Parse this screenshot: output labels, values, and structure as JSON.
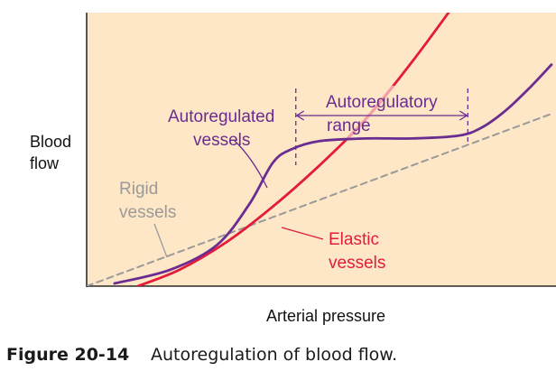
{
  "chart_data": {
    "type": "line",
    "title": "",
    "xlabel": "Arterial pressure",
    "ylabel_lines": [
      "Blood",
      "flow"
    ],
    "xlim": [
      0,
      100
    ],
    "ylim": [
      0,
      100
    ],
    "grid": false,
    "series": [
      {
        "name": "Rigid vessels",
        "label_lines": [
          "Rigid",
          "vessels"
        ],
        "color": "#9a9a9a",
        "style": "dashed",
        "x": [
          0,
          100
        ],
        "y": [
          0,
          63
        ]
      },
      {
        "name": "Autoregulated vessels",
        "label_lines": [
          "Autoregulated",
          "vessels"
        ],
        "color": "#6a2c91",
        "style": "solid",
        "x": [
          6,
          18,
          28,
          35,
          40,
          44,
          50,
          60,
          70,
          80,
          85,
          90,
          95,
          100
        ],
        "y": [
          1,
          6,
          15,
          30,
          45,
          50,
          53,
          54,
          54,
          55,
          58,
          64,
          72,
          81
        ]
      },
      {
        "name": "Elastic vessels",
        "label_lines": [
          "Elastic",
          "vessels"
        ],
        "color": "#e51b3c",
        "style": "solid",
        "x": [
          11,
          20,
          30,
          40,
          50,
          60,
          70,
          80
        ],
        "y": [
          0,
          6,
          16,
          29,
          44,
          61,
          82,
          105
        ]
      }
    ],
    "annotations": [
      {
        "label_lines": [
          "Autoregulatory",
          "range"
        ],
        "x_range": [
          45,
          82
        ],
        "color": "#6a2c91"
      }
    ]
  },
  "caption": {
    "figure_number": "Figure 20-14",
    "text": "Autoregulation of blood flow."
  },
  "colors": {
    "plot_background": "#fde7c6",
    "axis": "#000000",
    "autoregulated": "#6a2c91",
    "elastic": "#e51b3c",
    "elastic_faded": "#f5a0a8",
    "rigid": "#9a9a9a"
  }
}
